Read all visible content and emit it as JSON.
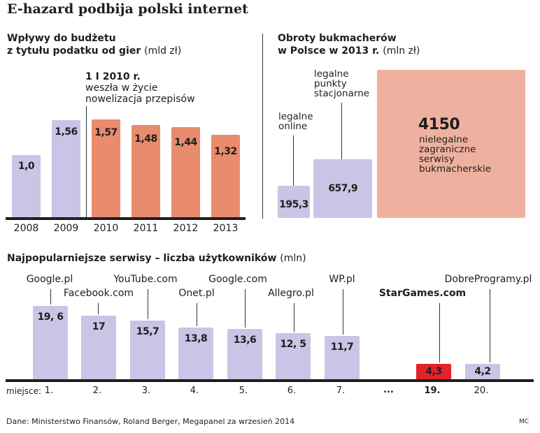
{
  "title": "E-hazard podbija polski internet",
  "colors": {
    "legal": "#c9c5e6",
    "post2010": "#e98b6d",
    "illegal": "#efb19f",
    "highlight": "#e3222a"
  },
  "chart_data": [
    {
      "type": "bar",
      "title_bold": "Wpływy do budżetu z tytułu podatku od gier",
      "title_line1": "Wpływy do budżetu",
      "title_line2": "z tytułu podatku od gier",
      "unit": "(mld zł)",
      "categories": [
        "2008",
        "2009",
        "2010",
        "2011",
        "2012",
        "2013"
      ],
      "values": [
        1.0,
        1.56,
        1.57,
        1.48,
        1.44,
        1.32
      ],
      "value_labels": [
        "1,0",
        "1,56",
        "1,57",
        "1,48",
        "1,44",
        "1,32"
      ],
      "annotation": {
        "date": "1 I 2010 r.",
        "line1": "weszła w życie",
        "line2": "nowelizacja przepisów"
      }
    },
    {
      "type": "area-squares",
      "title_line1": "Obroty bukmacherów",
      "title_line2": "w Polsce w 2013 r.",
      "unit": "(mln zł)",
      "items": [
        {
          "label_lines": [
            "legalne",
            "online"
          ],
          "value": 195.3,
          "value_label": "195,3"
        },
        {
          "label_lines": [
            "legalne",
            "punkty",
            "stacjonarne"
          ],
          "value": 657.9,
          "value_label": "657,9"
        },
        {
          "label_lines": [
            "nielegalne",
            "zagraniczne",
            "serwisy",
            "bukmacherskie"
          ],
          "value": 4150,
          "value_label": "4150"
        }
      ]
    },
    {
      "type": "bar",
      "title": "Najpopularniejsze serwisy – liczba użytkowników",
      "unit": "(mln)",
      "place_label": "miejsce:",
      "gap_label": "...",
      "items": [
        {
          "name": "Google.pl",
          "place": "1.",
          "value": 19.6,
          "value_label": "19, 6"
        },
        {
          "name": "Facebook.com",
          "place": "2.",
          "value": 17,
          "value_label": "17"
        },
        {
          "name": "YouTube.com",
          "place": "3.",
          "value": 15.7,
          "value_label": "15,7"
        },
        {
          "name": "Onet.pl",
          "place": "4.",
          "value": 13.8,
          "value_label": "13,8"
        },
        {
          "name": "Google.com",
          "place": "5.",
          "value": 13.6,
          "value_label": "13,6"
        },
        {
          "name": "Allegro.pl",
          "place": "6.",
          "value": 12.5,
          "value_label": "12, 5"
        },
        {
          "name": "WP.pl",
          "place": "7.",
          "value": 11.7,
          "value_label": "11,7"
        },
        {
          "name": "StarGames.com",
          "place": "19.",
          "value": 4.3,
          "value_label": "4,3",
          "highlight": true
        },
        {
          "name": "DobreProgramy.pl",
          "place": "20.",
          "value": 4.2,
          "value_label": "4,2"
        }
      ]
    }
  ],
  "footer": {
    "source": "Dane: Ministerstwo Finansów, Roland Berger, Megapanel za wrzesień 2014",
    "author": "MC"
  }
}
